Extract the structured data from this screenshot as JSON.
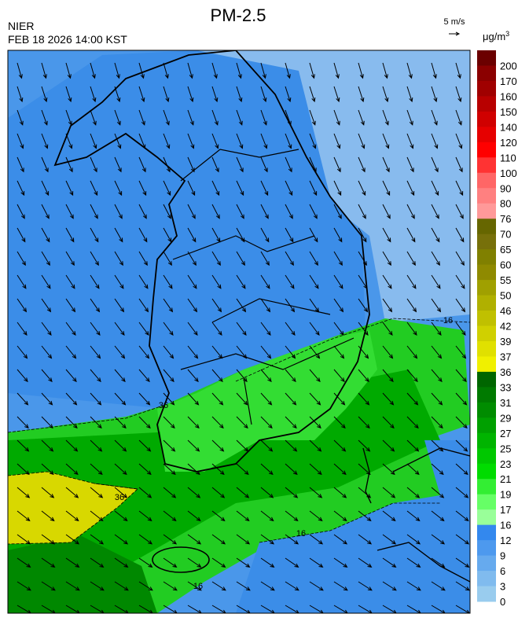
{
  "header": {
    "title": "PM-2.5",
    "agency": "NIER",
    "datetime": "FEB 18 2026 14:00 KST",
    "wind_scale": "5 m/s",
    "unit": "μg/m",
    "unit_sup": "3"
  },
  "colorbar": {
    "levels": [
      200,
      170,
      160,
      150,
      140,
      120,
      110,
      100,
      90,
      80,
      76,
      70,
      65,
      60,
      55,
      50,
      46,
      42,
      39,
      37,
      36,
      33,
      31,
      29,
      27,
      25,
      23,
      21,
      19,
      17,
      16,
      12,
      9,
      6,
      3,
      0
    ],
    "colors": [
      "#6b0000",
      "#8b0000",
      "#a00000",
      "#b80000",
      "#d00000",
      "#e60000",
      "#ff0000",
      "#ff3333",
      "#ff6666",
      "#ff8080",
      "#ff9999",
      "#666600",
      "#77700a",
      "#808000",
      "#8f8a00",
      "#a0a000",
      "#b0b000",
      "#c0c000",
      "#d0d000",
      "#e0e000",
      "#f0f000",
      "#006600",
      "#007a00",
      "#008c00",
      "#00a000",
      "#00b400",
      "#00c800",
      "#00dc00",
      "#33ee33",
      "#66ff66",
      "#99ff99",
      "#3388ee",
      "#4d99ee",
      "#66aaee",
      "#80bbee",
      "#99ccee"
    ]
  },
  "contour_labels": [
    "16",
    "16",
    "16",
    "36",
    "36"
  ]
}
